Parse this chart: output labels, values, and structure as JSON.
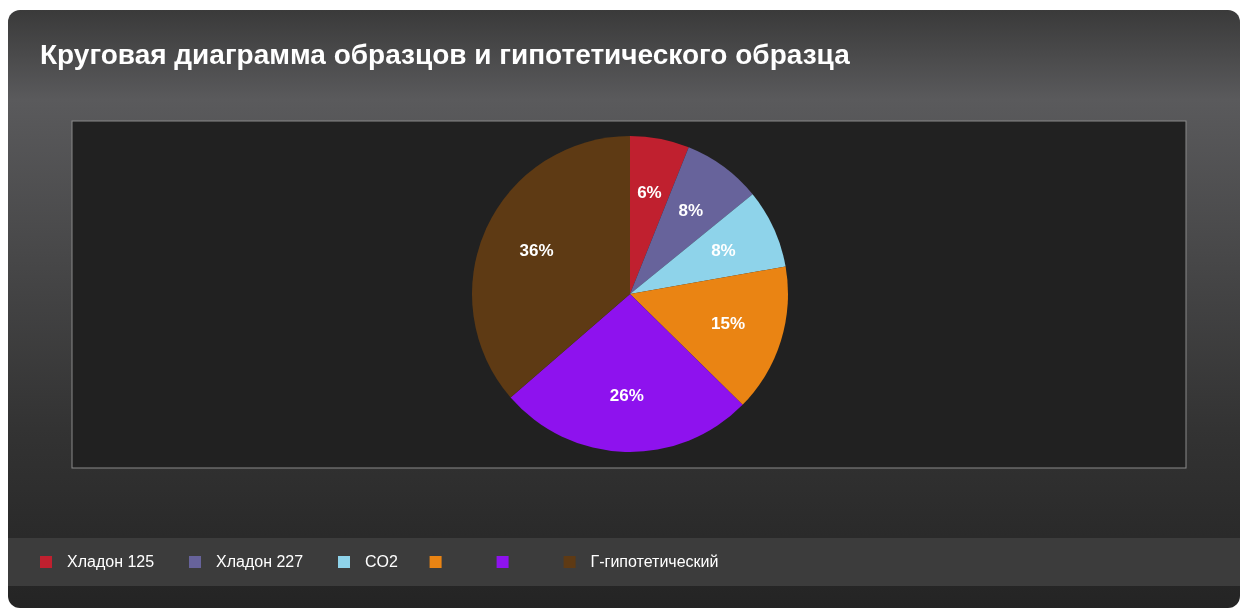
{
  "chart_data": {
    "type": "pie",
    "title": "Круговая диаграмма образцов и гипотетического образца",
    "categories": [
      "Хладон 125",
      "Хладон 227",
      "CO2",
      null,
      null,
      "Г-гипотетический"
    ],
    "values": [
      6,
      8,
      8,
      15,
      26,
      36
    ],
    "value_labels": [
      "6%",
      "8%",
      "8%",
      "15%",
      "26%",
      "36%"
    ],
    "colors": [
      "#c0202f",
      "#67639b",
      "#8ed3ea",
      "#ea8413",
      "#8e12ee",
      "#5e3a14"
    ],
    "legend": "bottom"
  }
}
